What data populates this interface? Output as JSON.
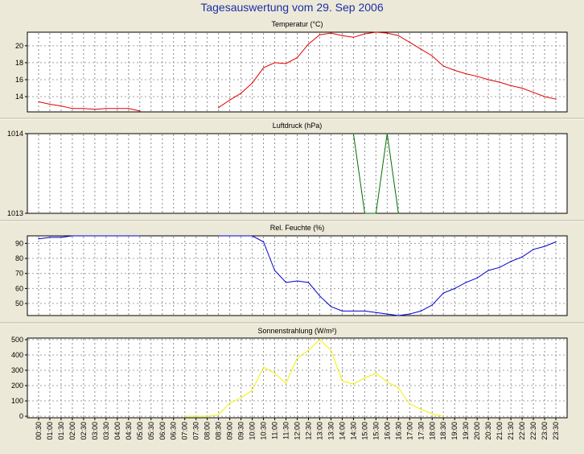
{
  "title": "Tagesauswertung vom 29. Sep 2006",
  "time_labels": [
    "00:30",
    "01:00",
    "01:30",
    "02:00",
    "02:30",
    "03:00",
    "03:30",
    "04:00",
    "04:30",
    "05:00",
    "05:30",
    "06:00",
    "06:30",
    "07:00",
    "07:30",
    "08:00",
    "08:30",
    "09:00",
    "09:30",
    "10:00",
    "10:30",
    "11:00",
    "11:30",
    "12:00",
    "12:30",
    "13:00",
    "13:30",
    "14:00",
    "14:30",
    "15:00",
    "15:30",
    "16:00",
    "16:30",
    "17:00",
    "17:30",
    "18:00",
    "18:30",
    "19:00",
    "19:30",
    "20:00",
    "20:30",
    "21:00",
    "21:30",
    "22:00",
    "22:30",
    "23:00",
    "23:30"
  ],
  "colors": {
    "temperature": "#e00000",
    "pressure": "#007000",
    "humidity": "#0000cc",
    "solar": "#f0f000",
    "title": "#1c2fa8"
  },
  "chart_data": [
    {
      "type": "line",
      "title": "Temperatur (°C)",
      "ylim": [
        12.2,
        21.6
      ],
      "yticks": [
        14,
        16,
        18,
        20
      ],
      "grid": true,
      "x": [
        "00:30",
        "01:00",
        "01:30",
        "02:00",
        "02:30",
        "03:00",
        "03:30",
        "04:00",
        "04:30",
        "05:00",
        "05:30",
        "06:00",
        "06:30",
        "07:00",
        "07:30",
        "08:00",
        "08:30",
        "09:00",
        "09:30",
        "10:00",
        "10:30",
        "11:00",
        "11:30",
        "12:00",
        "12:30",
        "13:00",
        "13:30",
        "14:00",
        "14:30",
        "15:00",
        "15:30",
        "16:00",
        "16:30",
        "17:00",
        "17:30",
        "18:00",
        "18:30",
        "19:00",
        "19:30",
        "20:00",
        "20:30",
        "21:00",
        "21:30",
        "22:00",
        "22:30",
        "23:00",
        "23:30"
      ],
      "values": [
        13.4,
        13.1,
        12.9,
        12.6,
        12.6,
        12.5,
        12.6,
        12.6,
        12.6,
        12.3,
        null,
        null,
        null,
        null,
        null,
        null,
        12.7,
        13.6,
        14.4,
        15.6,
        17.4,
        18.0,
        17.9,
        18.6,
        20.2,
        21.3,
        21.5,
        21.2,
        21.0,
        21.4,
        21.6,
        21.5,
        21.2,
        20.4,
        19.6,
        18.8,
        17.6,
        17.1,
        16.7,
        16.4,
        16.0,
        15.7,
        15.3,
        15.0,
        14.5,
        14.0,
        13.7
      ]
    },
    {
      "type": "line",
      "title": "Luftdruck (hPa)",
      "ylim": [
        1013,
        1014
      ],
      "yticks": [
        1013,
        1014
      ],
      "grid": true,
      "x": [
        "14:30",
        "15:00",
        "15:30",
        "16:00",
        "16:30"
      ],
      "values": [
        1014,
        1013,
        1013,
        1014,
        1013
      ]
    },
    {
      "type": "line",
      "title": "Rel. Feuchte (%)",
      "ylim": [
        42,
        95
      ],
      "yticks": [
        50,
        60,
        70,
        80,
        90
      ],
      "grid": true,
      "x": [
        "00:30",
        "01:00",
        "01:30",
        "02:00",
        "02:30",
        "03:00",
        "03:30",
        "04:00",
        "04:30",
        "05:00",
        "05:30",
        "06:00",
        "06:30",
        "07:00",
        "07:30",
        "08:00",
        "08:30",
        "09:00",
        "09:30",
        "10:00",
        "10:30",
        "11:00",
        "11:30",
        "12:00",
        "12:30",
        "13:00",
        "13:30",
        "14:00",
        "14:30",
        "15:00",
        "15:30",
        "16:00",
        "16:30",
        "17:00",
        "17:30",
        "18:00",
        "18:30",
        "19:00",
        "19:30",
        "20:00",
        "20:30",
        "21:00",
        "21:30",
        "22:00",
        "22:30",
        "23:00",
        "23:30"
      ],
      "values": [
        93,
        94,
        94,
        95,
        95,
        95,
        95,
        95,
        95,
        95,
        null,
        null,
        null,
        null,
        null,
        null,
        95,
        95,
        95,
        95,
        91,
        72,
        64,
        65,
        64,
        55,
        48,
        45,
        45,
        45,
        44,
        43,
        42,
        43,
        45,
        49,
        57,
        60,
        64,
        67,
        72,
        74,
        78,
        81,
        86,
        88,
        91
      ]
    },
    {
      "type": "line",
      "title": "Sonnenstrahlung (W/m²)",
      "ylim": [
        -10,
        510
      ],
      "yticks": [
        0,
        100,
        200,
        300,
        400,
        500
      ],
      "grid": true,
      "x": [
        "00:30",
        "01:00",
        "01:30",
        "02:00",
        "02:30",
        "03:00",
        "03:30",
        "04:00",
        "04:30",
        "05:00",
        "05:30",
        "06:00",
        "06:30",
        "07:00",
        "07:30",
        "08:00",
        "08:30",
        "09:00",
        "09:30",
        "10:00",
        "10:30",
        "11:00",
        "11:30",
        "12:00",
        "12:30",
        "13:00",
        "13:30",
        "14:00",
        "14:30",
        "15:00",
        "15:30",
        "16:00",
        "16:30",
        "17:00",
        "17:30",
        "18:00",
        "18:30",
        "19:00",
        "19:30",
        "20:00",
        "20:30",
        "21:00",
        "21:30",
        "22:00",
        "22:30",
        "23:00",
        "23:30"
      ],
      "values": [
        null,
        null,
        null,
        null,
        null,
        null,
        null,
        null,
        null,
        null,
        null,
        null,
        null,
        0,
        0,
        0,
        10,
        85,
        120,
        170,
        320,
        280,
        215,
        380,
        430,
        500,
        430,
        230,
        210,
        250,
        280,
        225,
        185,
        80,
        45,
        15,
        0,
        null,
        null,
        null,
        null,
        null,
        null,
        null,
        null,
        null,
        null
      ]
    }
  ]
}
